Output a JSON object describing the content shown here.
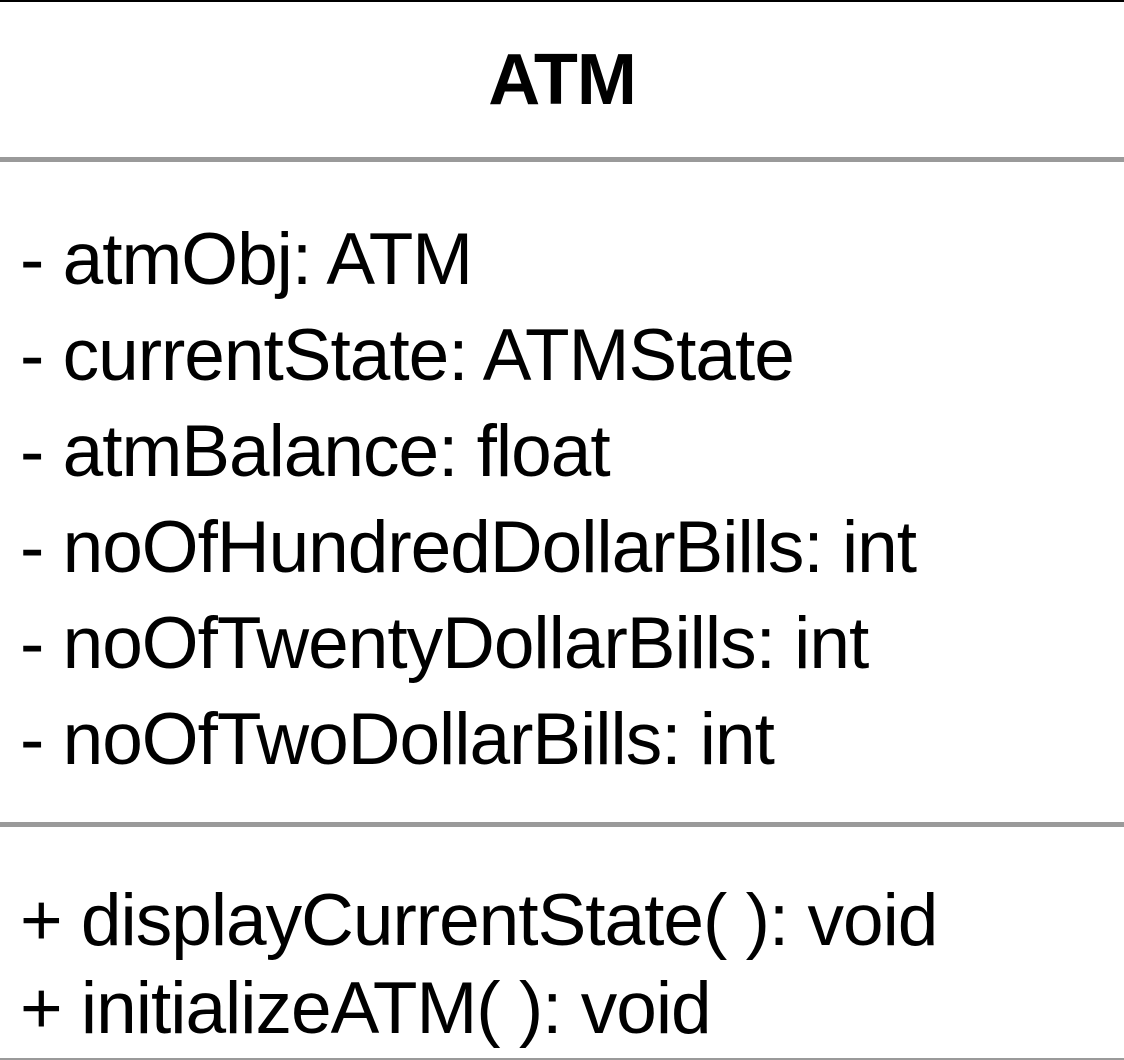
{
  "class": {
    "name": "ATM",
    "attributes": [
      "- atmObj: ATM",
      "- currentState: ATMState",
      "- atmBalance: float",
      "- noOfHundredDollarBills: int",
      "- noOfTwentyDollarBills: int",
      "- noOfTwoDollarBills: int"
    ],
    "operations": [
      "+ displayCurrentState( ): void",
      "+ initializeATM( ): void"
    ]
  },
  "colors": {
    "border": "#000000",
    "divider": "#9a9a9a",
    "text": "#000000",
    "background": "#ffffff"
  }
}
